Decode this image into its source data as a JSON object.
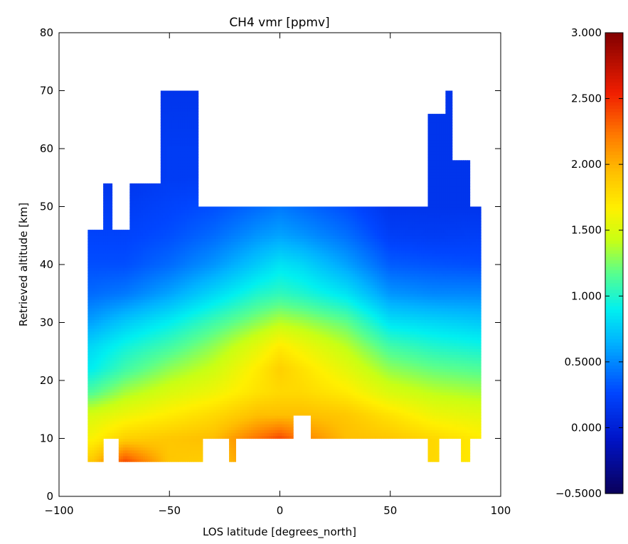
{
  "chart_data": {
    "type": "heatmap",
    "title": "CH4 vmr [ppmv]",
    "xlabel": "LOS latitude [degrees_north]",
    "ylabel": "Retrieved altitude [km]",
    "xlim": [
      -100,
      100
    ],
    "ylim": [
      0,
      80
    ],
    "x_ticks": [
      -100,
      -50,
      0,
      50,
      100
    ],
    "y_ticks": [
      0,
      10,
      20,
      30,
      40,
      50,
      60,
      70,
      80
    ],
    "x_tick_labels": [
      "−100",
      "−50",
      "0",
      "50",
      "100"
    ],
    "y_tick_labels": [
      "0",
      "10",
      "20",
      "30",
      "40",
      "50",
      "60",
      "70",
      "80"
    ],
    "colorbar": {
      "range": [
        -0.5,
        3.0
      ],
      "ticks": [
        -0.5,
        0.0,
        0.5,
        1.0,
        1.5,
        2.0,
        2.5,
        3.0
      ],
      "tick_labels": [
        "−0.5000",
        "0.000",
        "0.5000",
        "1.000",
        "1.500",
        "2.000",
        "2.500",
        "3.000"
      ],
      "colormap": "rainbow"
    },
    "columns": [
      {
        "x": [
          -87,
          -80
        ],
        "top": 46,
        "bottom": 6
      },
      {
        "x": [
          -80,
          -76
        ],
        "top": 54,
        "bottom": 10
      },
      {
        "x": [
          -76,
          -73
        ],
        "top": 46,
        "bottom": 10
      },
      {
        "x": [
          -73,
          -68
        ],
        "top": 46,
        "bottom": 6
      },
      {
        "x": [
          -68,
          -54
        ],
        "top": 54,
        "bottom": 6
      },
      {
        "x": [
          -54,
          -44
        ],
        "top": 70,
        "bottom": 6
      },
      {
        "x": [
          -44,
          -37
        ],
        "top": 70,
        "bottom": 6
      },
      {
        "x": [
          -37,
          -35
        ],
        "top": 50,
        "bottom": 6
      },
      {
        "x": [
          -35,
          -23
        ],
        "top": 50,
        "bottom": 10
      },
      {
        "x": [
          -23,
          -20
        ],
        "top": 50,
        "bottom": 6
      },
      {
        "x": [
          -20,
          6
        ],
        "top": 50,
        "bottom": 10
      },
      {
        "x": [
          6,
          14
        ],
        "top": 50,
        "bottom": 14
      },
      {
        "x": [
          14,
          67
        ],
        "top": 50,
        "bottom": 10
      },
      {
        "x": [
          67,
          72
        ],
        "top": 66,
        "bottom": 6
      },
      {
        "x": [
          72,
          75
        ],
        "top": 66,
        "bottom": 10
      },
      {
        "x": [
          75,
          78
        ],
        "top": 70,
        "bottom": 10
      },
      {
        "x": [
          78,
          82
        ],
        "top": 58,
        "bottom": 10
      },
      {
        "x": [
          82,
          86
        ],
        "top": 58,
        "bottom": 6
      },
      {
        "x": [
          86,
          91
        ],
        "top": 50,
        "bottom": 10
      }
    ],
    "field_altitude_km": [
      6,
      10,
      14,
      18,
      22,
      26,
      30,
      35,
      40,
      45,
      50,
      55,
      60,
      70
    ],
    "field_profiles": [
      {
        "lat": -85,
        "vmr": [
          1.9,
          1.65,
          1.5,
          1.15,
          0.9,
          0.8,
          0.6,
          0.4,
          0.3,
          0.25,
          0.2,
          0.15,
          0.15,
          0.15
        ]
      },
      {
        "lat": -70,
        "vmr": [
          2.4,
          1.85,
          1.6,
          1.35,
          1.1,
          0.95,
          0.75,
          0.45,
          0.3,
          0.25,
          0.2,
          0.15,
          0.15,
          0.15
        ]
      },
      {
        "lat": -50,
        "vmr": [
          1.9,
          1.9,
          1.7,
          1.5,
          1.3,
          1.1,
          0.9,
          0.6,
          0.4,
          0.3,
          0.25,
          0.2,
          0.2,
          0.15
        ]
      },
      {
        "lat": -30,
        "vmr": [
          1.85,
          1.95,
          1.8,
          1.6,
          1.45,
          1.3,
          1.1,
          0.8,
          0.55,
          0.4,
          0.3,
          0.2,
          0.2,
          0.15
        ]
      },
      {
        "lat": -10,
        "vmr": [
          2.2,
          2.25,
          1.95,
          1.75,
          1.7,
          1.55,
          1.3,
          1.0,
          0.75,
          0.55,
          0.4,
          0.3,
          0.25,
          0.2
        ]
      },
      {
        "lat": 0,
        "vmr": [
          2.4,
          2.4,
          1.95,
          1.8,
          1.85,
          1.7,
          1.4,
          1.05,
          0.85,
          0.6,
          0.45,
          0.35,
          0.3,
          0.2
        ]
      },
      {
        "lat": 10,
        "vmr": [
          2.2,
          2.2,
          1.95,
          1.8,
          1.75,
          1.6,
          1.35,
          1.0,
          0.8,
          0.55,
          0.4,
          0.3,
          0.25,
          0.2
        ]
      },
      {
        "lat": 30,
        "vmr": [
          1.9,
          1.95,
          1.9,
          1.7,
          1.55,
          1.4,
          1.2,
          0.85,
          0.6,
          0.42,
          0.3,
          0.25,
          0.2,
          0.15
        ]
      },
      {
        "lat": 50,
        "vmr": [
          1.85,
          1.9,
          1.75,
          1.5,
          1.3,
          1.1,
          0.85,
          0.55,
          0.35,
          0.22,
          0.15,
          0.15,
          0.15,
          0.15
        ]
      },
      {
        "lat": 70,
        "vmr": [
          1.8,
          1.8,
          1.6,
          1.4,
          1.2,
          1.0,
          0.8,
          0.5,
          0.32,
          0.2,
          0.15,
          0.15,
          0.15,
          0.15
        ]
      },
      {
        "lat": 90,
        "vmr": [
          1.7,
          1.7,
          1.55,
          1.35,
          1.15,
          0.95,
          0.75,
          0.5,
          0.3,
          0.22,
          0.15,
          0.15,
          0.15,
          0.15
        ]
      }
    ]
  }
}
